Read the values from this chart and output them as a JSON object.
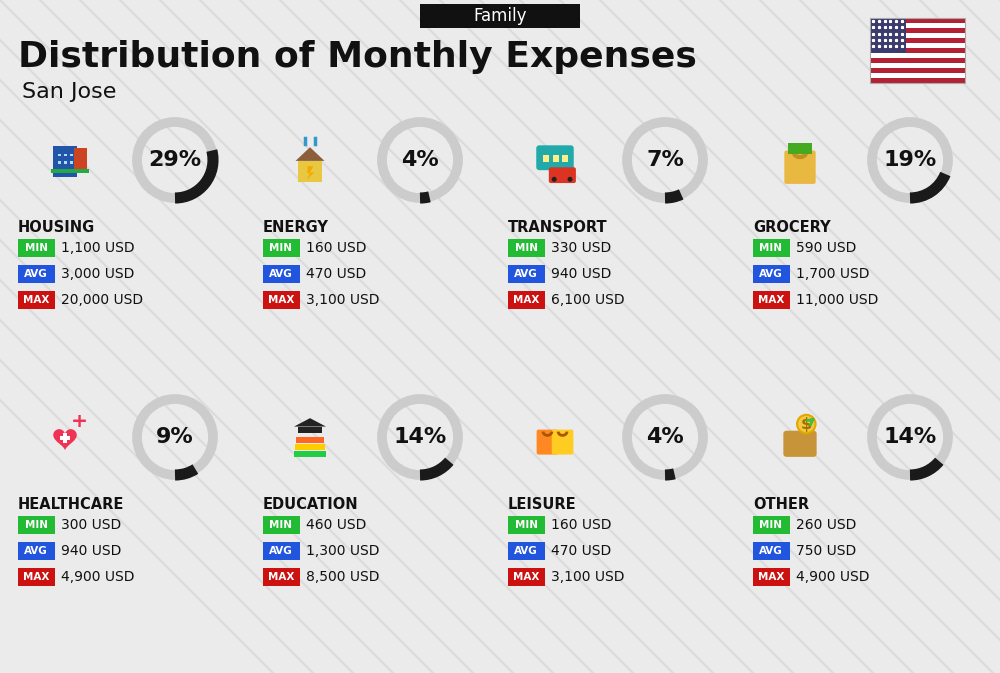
{
  "title": "Distribution of Monthly Expenses",
  "subtitle": "San Jose",
  "header_label": "Family",
  "bg_color": "#ebebeb",
  "categories": [
    {
      "name": "HOUSING",
      "pct": 29,
      "min": "1,100 USD",
      "avg": "3,000 USD",
      "max": "20,000 USD",
      "col": 0,
      "row": 0
    },
    {
      "name": "ENERGY",
      "pct": 4,
      "min": "160 USD",
      "avg": "470 USD",
      "max": "3,100 USD",
      "col": 1,
      "row": 0
    },
    {
      "name": "TRANSPORT",
      "pct": 7,
      "min": "330 USD",
      "avg": "940 USD",
      "max": "6,100 USD",
      "col": 2,
      "row": 0
    },
    {
      "name": "GROCERY",
      "pct": 19,
      "min": "590 USD",
      "avg": "1,700 USD",
      "max": "11,000 USD",
      "col": 3,
      "row": 0
    },
    {
      "name": "HEALTHCARE",
      "pct": 9,
      "min": "300 USD",
      "avg": "940 USD",
      "max": "4,900 USD",
      "col": 0,
      "row": 1
    },
    {
      "name": "EDUCATION",
      "pct": 14,
      "min": "460 USD",
      "avg": "1,300 USD",
      "max": "8,500 USD",
      "col": 1,
      "row": 1
    },
    {
      "name": "LEISURE",
      "pct": 4,
      "min": "160 USD",
      "avg": "470 USD",
      "max": "3,100 USD",
      "col": 2,
      "row": 1
    },
    {
      "name": "OTHER",
      "pct": 14,
      "min": "260 USD",
      "avg": "750 USD",
      "max": "4,900 USD",
      "col": 3,
      "row": 1
    }
  ],
  "min_color": "#22bb33",
  "avg_color": "#2255dd",
  "max_color": "#cc1111",
  "label_text_color": "#ffffff",
  "value_text_color": "#111111",
  "category_name_color": "#111111",
  "pct_text_color": "#111111",
  "donut_filled_color": "#1a1a1a",
  "donut_empty_color": "#cccccc",
  "stripe_color": "#d5d5d5",
  "title_fontsize": 26,
  "subtitle_fontsize": 16,
  "header_fontsize": 12,
  "cat_name_fontsize": 10.5,
  "pct_fontsize": 16,
  "label_fontsize": 7.5,
  "value_fontsize": 10
}
